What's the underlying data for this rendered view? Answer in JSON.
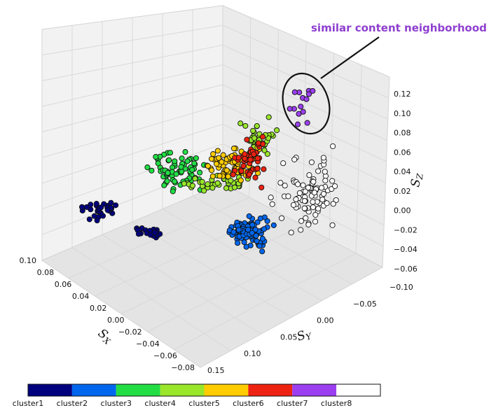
{
  "chart_data": {
    "type": "scatter",
    "projection": "3d",
    "title": "",
    "annotation": {
      "text": "similar content neighborhood",
      "color": "#8e3fcf"
    },
    "axes": {
      "x": {
        "label": "S_X",
        "ticks": [
          "0.10",
          "0.08",
          "0.06",
          "0.04",
          "0.02",
          "0.00",
          "−0.02",
          "−0.04",
          "−0.06",
          "−0.08"
        ],
        "range": [
          -0.08,
          0.1
        ]
      },
      "y": {
        "label": "S_Y",
        "ticks": [
          "0.15",
          "0.10",
          "0.05",
          "0.00",
          "−0.05",
          "−0.10"
        ],
        "range": [
          -0.1,
          0.15
        ]
      },
      "z": {
        "label": "S_Z",
        "ticks": [
          "0.12",
          "0.10",
          "0.08",
          "0.06",
          "0.04",
          "0.02",
          "0.00",
          "−0.02",
          "−0.04",
          "−0.06"
        ],
        "range": [
          -0.06,
          0.12
        ]
      }
    },
    "grid": true,
    "legend": {
      "placement": "bottom colorbar",
      "items": [
        {
          "label": "cluster1",
          "color": "#00007f"
        },
        {
          "label": "cluster2",
          "color": "#0066ee"
        },
        {
          "label": "cluster3",
          "color": "#22dd44"
        },
        {
          "label": "cluster4",
          "color": "#99e62a"
        },
        {
          "label": "cluster5",
          "color": "#ffcc00"
        },
        {
          "label": "cluster6",
          "color": "#ee2211"
        },
        {
          "label": "cluster7",
          "color": "#9b3ff0"
        },
        {
          "label": "cluster8",
          "color": "#ffffff"
        }
      ]
    },
    "series": [
      {
        "name": "cluster1",
        "n": 55
      },
      {
        "name": "cluster2",
        "n": 95
      },
      {
        "name": "cluster3",
        "n": 70
      },
      {
        "name": "cluster4",
        "n": 80
      },
      {
        "name": "cluster5",
        "n": 75
      },
      {
        "name": "cluster6",
        "n": 45
      },
      {
        "name": "cluster7",
        "n": 14
      },
      {
        "name": "cluster8",
        "n": 90
      }
    ]
  }
}
